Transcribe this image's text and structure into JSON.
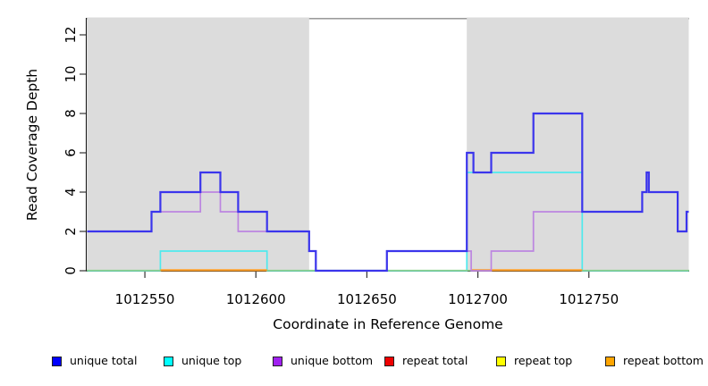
{
  "chart_data": {
    "type": "line",
    "subtype": "step-coverage",
    "title": "",
    "xlabel": "Coordinate in Reference Genome",
    "ylabel": "Read Coverage Depth",
    "xlim": [
      1012524,
      1012795
    ],
    "ylim": [
      0,
      13
    ],
    "x_ticks": [
      1012550,
      1012600,
      1012650,
      1012700,
      1012750
    ],
    "y_ticks": [
      0,
      2,
      4,
      6,
      8,
      10,
      12
    ],
    "grid": false,
    "plot_bg": "#ffffff",
    "legend_position": "bottom",
    "shaded_regions": [
      {
        "x0": 1012524,
        "x1": 1012624,
        "color": "#dcdcdc",
        "note": "repeat-masked region"
      },
      {
        "x0": 1012695,
        "x1": 1012795,
        "color": "#dcdcdc",
        "note": "repeat-masked region"
      }
    ],
    "box_top_line_color": "#8c8c8c",
    "baseline": {
      "y": 0,
      "color": "#8fd28f",
      "note": "green zero-depth baseline spanning full x-range"
    },
    "series": [
      {
        "name": "unique total",
        "legend_color": "#0000ff",
        "line_color": "#3b35ec",
        "line_width": 2.2,
        "steps": [
          [
            1012524,
            2
          ],
          [
            1012553,
            3
          ],
          [
            1012557,
            4
          ],
          [
            1012575,
            5
          ],
          [
            1012584,
            4
          ],
          [
            1012592,
            3
          ],
          [
            1012605,
            2
          ],
          [
            1012624,
            1
          ],
          [
            1012627,
            0
          ],
          [
            1012659,
            1
          ],
          [
            1012695,
            6
          ],
          [
            1012698,
            5
          ],
          [
            1012706,
            6
          ],
          [
            1012725,
            8
          ],
          [
            1012747,
            3
          ],
          [
            1012774,
            4
          ],
          [
            1012776,
            5
          ],
          [
            1012777,
            4
          ],
          [
            1012790,
            2
          ],
          [
            1012794,
            3
          ]
        ],
        "x_end": 1012795
      },
      {
        "name": "unique top",
        "legend_color": "#00ffff",
        "line_color": "#4fe9ed",
        "line_width": 1.7,
        "steps": [
          [
            1012524,
            0
          ],
          [
            1012557,
            1
          ],
          [
            1012605,
            0
          ],
          [
            1012695,
            5
          ],
          [
            1012747,
            0
          ]
        ],
        "x_end": 1012795
      },
      {
        "name": "unique bottom",
        "legend_color": "#a020f0",
        "line_color": "#bc85e0",
        "line_width": 1.7,
        "steps": [
          [
            1012524,
            2
          ],
          [
            1012553,
            3
          ],
          [
            1012575,
            4
          ],
          [
            1012584,
            3
          ],
          [
            1012592,
            2
          ],
          [
            1012624,
            1
          ],
          [
            1012627,
            0
          ],
          [
            1012659,
            1
          ],
          [
            1012697,
            0
          ],
          [
            1012706,
            1
          ],
          [
            1012725,
            3
          ],
          [
            1012774,
            4
          ],
          [
            1012776,
            5
          ],
          [
            1012777,
            4
          ],
          [
            1012790,
            2
          ],
          [
            1012794,
            3
          ]
        ],
        "x_end": 1012795
      },
      {
        "name": "repeat total",
        "legend_color": "#ee0000",
        "line_color": "#ee0000",
        "line_width": 1.7,
        "steps": [],
        "note": "depth 0 throughout; hidden beneath baseline"
      },
      {
        "name": "repeat top",
        "legend_color": "#ffff00",
        "line_color": "#ffff00",
        "line_width": 1.7,
        "steps": [],
        "note": "depth 0 throughout; hidden beneath baseline"
      },
      {
        "name": "repeat bottom",
        "legend_color": "#ffa500",
        "line_color": "#ff9e27",
        "line_width": 2.2,
        "steps": [],
        "zero_segments": [
          [
            1012557,
            1012605
          ],
          [
            1012697,
            1012747
          ]
        ],
        "note": "depth 0; drawn along baseline in shaded regions"
      }
    ]
  }
}
